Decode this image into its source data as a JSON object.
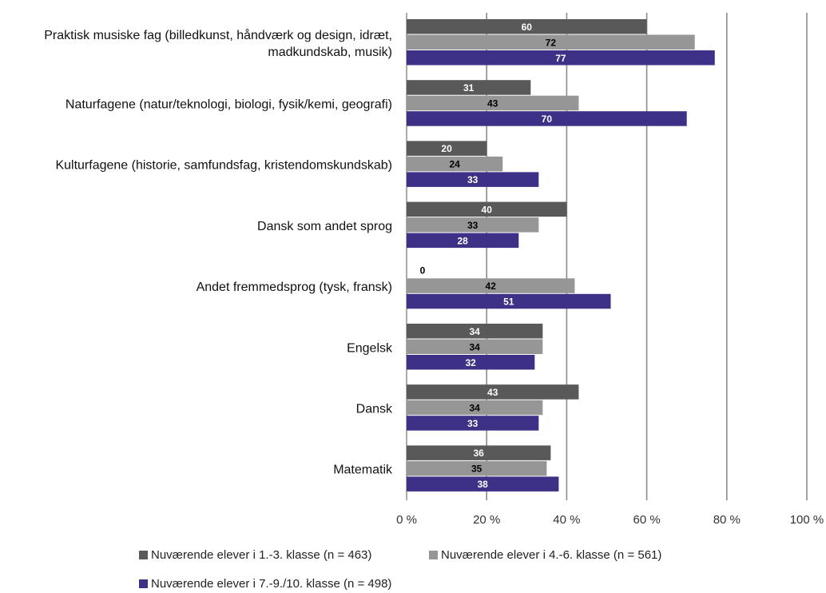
{
  "chart_data": {
    "type": "bar",
    "orientation": "horizontal",
    "title": "",
    "xlabel": "",
    "ylabel": "",
    "xlim": [
      0,
      100
    ],
    "x_ticks": [
      "0 %",
      "20 %",
      "40 %",
      "60 %",
      "80 %",
      "100 %"
    ],
    "grid": true,
    "legend_position": "bottom",
    "categories": [
      "Praktisk musiske fag (billedkunst, håndværk og design, idræt, madkundskab, musik)",
      "Naturfagene (natur/teknologi, biologi, fysik/kemi, geografi)",
      "Kulturfagene (historie, samfundsfag, kristendomskundskab)",
      "Dansk som andet sprog",
      "Andet fremmedsprog (tysk, fransk)",
      "Engelsk",
      "Dansk",
      "Matematik"
    ],
    "category_lines": [
      [
        "Praktisk musiske fag (billedkunst, håndværk og design, idræt,",
        "madkundskab, musik)"
      ],
      [
        "Naturfagene (natur/teknologi, biologi, fysik/kemi, geografi)"
      ],
      [
        "Kulturfagene (historie, samfundsfag, kristendomskundskab)"
      ],
      [
        "Dansk som andet sprog"
      ],
      [
        "Andet fremmedsprog (tysk, fransk)"
      ],
      [
        "Engelsk"
      ],
      [
        "Dansk"
      ],
      [
        "Matematik"
      ]
    ],
    "series": [
      {
        "name": "Nuværende elever i 1.-3. klasse (n = 463)",
        "color": "#595959",
        "label_color": "#ffffff",
        "values": [
          60,
          31,
          20,
          40,
          0,
          34,
          43,
          36
        ]
      },
      {
        "name": "Nuværende elever i 4.-6. klasse (n = 561)",
        "color": "#969696",
        "label_color": "#000000",
        "values": [
          72,
          43,
          24,
          33,
          42,
          34,
          34,
          35
        ]
      },
      {
        "name": "Nuværende elever i 7.-9./10. klasse (n = 498)",
        "color": "#3d3087",
        "label_color": "#ffffff",
        "values": [
          77,
          70,
          33,
          28,
          51,
          32,
          33,
          38
        ]
      }
    ]
  }
}
